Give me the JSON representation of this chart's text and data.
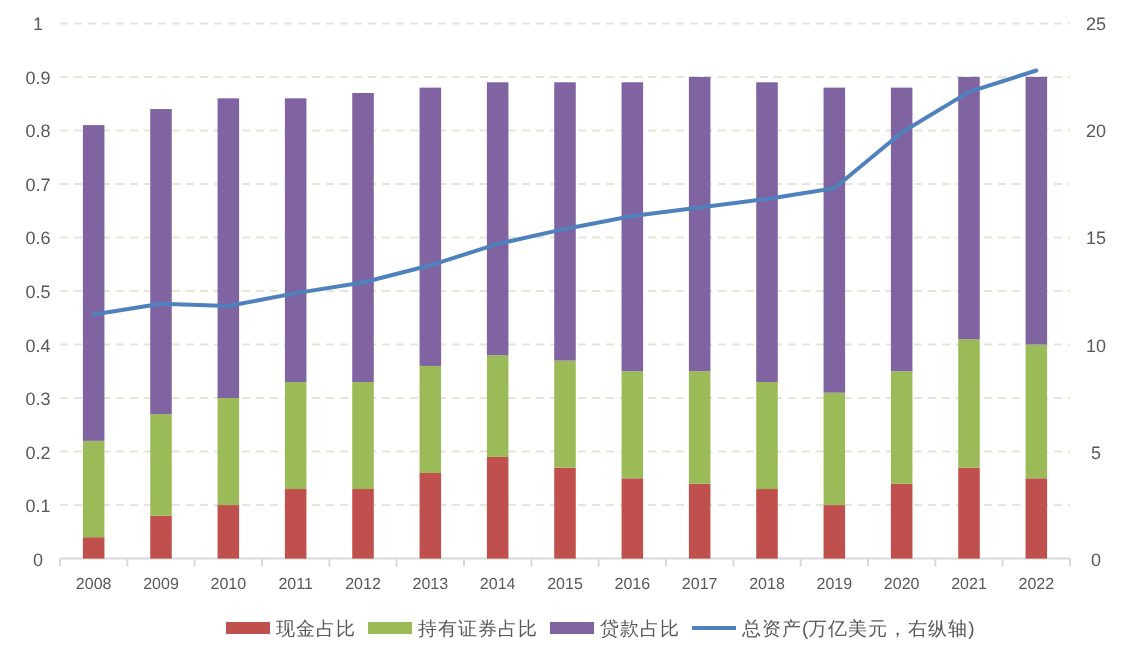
{
  "chart_data": {
    "type": "bar",
    "stacked": true,
    "categories": [
      "2008",
      "2009",
      "2010",
      "2011",
      "2012",
      "2013",
      "2014",
      "2015",
      "2016",
      "2017",
      "2018",
      "2019",
      "2020",
      "2021",
      "2022"
    ],
    "series": [
      {
        "name": "现金占比",
        "color": "#c0504d",
        "values": [
          0.04,
          0.08,
          0.1,
          0.13,
          0.13,
          0.16,
          0.19,
          0.17,
          0.15,
          0.14,
          0.13,
          0.1,
          0.14,
          0.17,
          0.15
        ]
      },
      {
        "name": "持有证券占比",
        "color": "#9bbb59",
        "values": [
          0.18,
          0.19,
          0.2,
          0.2,
          0.2,
          0.2,
          0.19,
          0.2,
          0.2,
          0.21,
          0.2,
          0.21,
          0.21,
          0.24,
          0.25
        ]
      },
      {
        "name": "贷款占比",
        "color": "#8064a2",
        "values": [
          0.59,
          0.57,
          0.56,
          0.53,
          0.54,
          0.52,
          0.51,
          0.52,
          0.54,
          0.55,
          0.56,
          0.57,
          0.53,
          0.49,
          0.5
        ]
      },
      {
        "name": "总资产(万亿美元，右纵轴)",
        "type": "line",
        "axis": "y2",
        "color": "#4f81bd",
        "values": [
          11.4,
          11.9,
          11.8,
          12.4,
          12.9,
          13.7,
          14.7,
          15.4,
          16.0,
          16.4,
          16.8,
          17.3,
          19.9,
          21.8,
          22.8
        ]
      }
    ],
    "ylim": [
      0,
      1
    ],
    "yticks": [
      0,
      0.1,
      0.2,
      0.3,
      0.4,
      0.5,
      0.6,
      0.7,
      0.8,
      0.9,
      1
    ],
    "y2lim": [
      0,
      25
    ],
    "y2ticks": [
      0,
      5,
      10,
      15,
      20,
      25
    ],
    "grid": "y",
    "legend": "bottom",
    "marker": "none",
    "line_style": "solid"
  }
}
